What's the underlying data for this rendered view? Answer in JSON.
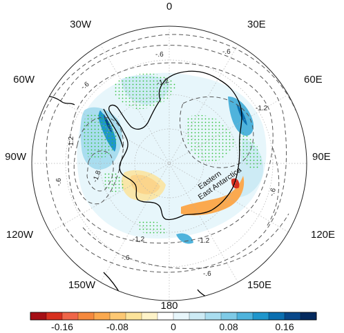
{
  "map": {
    "projection": "south-polar-stereographic",
    "longitude_labels": [
      {
        "id": "lon-0",
        "text": "0"
      },
      {
        "id": "lon-30e",
        "text": "30E"
      },
      {
        "id": "lon-60e",
        "text": "60E"
      },
      {
        "id": "lon-90e",
        "text": "90E"
      },
      {
        "id": "lon-120e",
        "text": "120E"
      },
      {
        "id": "lon-150e",
        "text": "150E"
      },
      {
        "id": "lon-180",
        "text": "180"
      },
      {
        "id": "lon-150w",
        "text": "150W"
      },
      {
        "id": "lon-120w",
        "text": "120W"
      },
      {
        "id": "lon-90w",
        "text": "90W"
      },
      {
        "id": "lon-60w",
        "text": "60W"
      },
      {
        "id": "lon-30w",
        "text": "30W"
      }
    ],
    "region_labels": [
      {
        "id": "eastern",
        "text": "Eastern"
      },
      {
        "id": "east-antarctica",
        "text": "East Antarctica"
      }
    ],
    "contour_labels": [
      "-.6",
      "-.6",
      "-1.2",
      "-1.2",
      "-1.2",
      "-1.2",
      "-1.2",
      "-.6",
      "-.6",
      "-1.8",
      "-.6",
      "-.6",
      "-.6"
    ],
    "contour_style": "dashed",
    "stippling": "green dots",
    "colors": {
      "coast": "#000000",
      "contour": "#555555",
      "stipple": "#2fbf3a",
      "grid": "#b0b0b0"
    }
  },
  "colorbar": {
    "tick_labels": [
      "-0.16",
      "-0.08",
      "0",
      "0.08",
      "0.16"
    ],
    "colors": [
      "#a50f15",
      "#d7301f",
      "#ef6548",
      "#f5893e",
      "#fba94f",
      "#fdc873",
      "#fce39a",
      "#fef3c8",
      "#ffffff",
      "#e8f6fb",
      "#cdebf5",
      "#a9ddef",
      "#7fcae6",
      "#4fb3dc",
      "#1f96cc",
      "#0a6fb0",
      "#08488a",
      "#042a5e"
    ]
  }
}
